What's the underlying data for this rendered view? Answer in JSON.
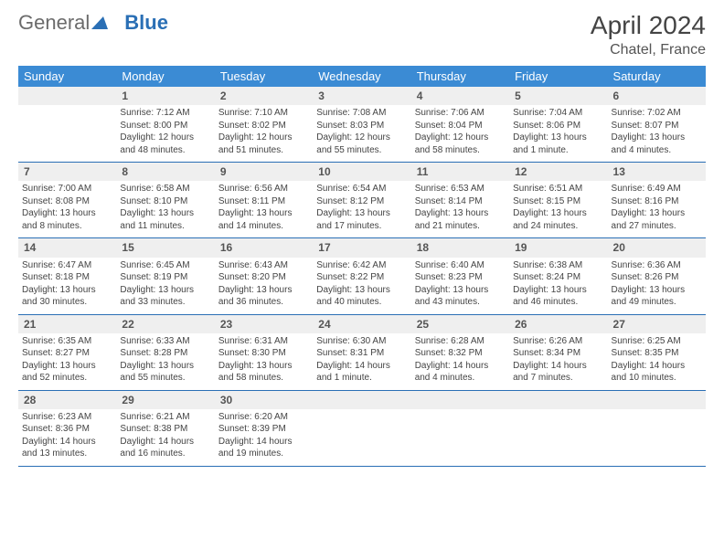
{
  "brand": {
    "part1": "General",
    "part2": "Blue"
  },
  "title": "April 2024",
  "location": "Chatel, France",
  "colors": {
    "header_bg": "#3b8bd4",
    "header_text": "#ffffff",
    "rule": "#2a6fb5",
    "daynum_bg": "#efefef",
    "text": "#444444"
  },
  "weekdays": [
    "Sunday",
    "Monday",
    "Tuesday",
    "Wednesday",
    "Thursday",
    "Friday",
    "Saturday"
  ],
  "weeks": [
    {
      "nums": [
        "",
        "1",
        "2",
        "3",
        "4",
        "5",
        "6"
      ],
      "cells": [
        {
          "empty": true
        },
        {
          "sunrise": "Sunrise: 7:12 AM",
          "sunset": "Sunset: 8:00 PM",
          "day1": "Daylight: 12 hours",
          "day2": "and 48 minutes."
        },
        {
          "sunrise": "Sunrise: 7:10 AM",
          "sunset": "Sunset: 8:02 PM",
          "day1": "Daylight: 12 hours",
          "day2": "and 51 minutes."
        },
        {
          "sunrise": "Sunrise: 7:08 AM",
          "sunset": "Sunset: 8:03 PM",
          "day1": "Daylight: 12 hours",
          "day2": "and 55 minutes."
        },
        {
          "sunrise": "Sunrise: 7:06 AM",
          "sunset": "Sunset: 8:04 PM",
          "day1": "Daylight: 12 hours",
          "day2": "and 58 minutes."
        },
        {
          "sunrise": "Sunrise: 7:04 AM",
          "sunset": "Sunset: 8:06 PM",
          "day1": "Daylight: 13 hours",
          "day2": "and 1 minute."
        },
        {
          "sunrise": "Sunrise: 7:02 AM",
          "sunset": "Sunset: 8:07 PM",
          "day1": "Daylight: 13 hours",
          "day2": "and 4 minutes."
        }
      ]
    },
    {
      "nums": [
        "7",
        "8",
        "9",
        "10",
        "11",
        "12",
        "13"
      ],
      "cells": [
        {
          "sunrise": "Sunrise: 7:00 AM",
          "sunset": "Sunset: 8:08 PM",
          "day1": "Daylight: 13 hours",
          "day2": "and 8 minutes."
        },
        {
          "sunrise": "Sunrise: 6:58 AM",
          "sunset": "Sunset: 8:10 PM",
          "day1": "Daylight: 13 hours",
          "day2": "and 11 minutes."
        },
        {
          "sunrise": "Sunrise: 6:56 AM",
          "sunset": "Sunset: 8:11 PM",
          "day1": "Daylight: 13 hours",
          "day2": "and 14 minutes."
        },
        {
          "sunrise": "Sunrise: 6:54 AM",
          "sunset": "Sunset: 8:12 PM",
          "day1": "Daylight: 13 hours",
          "day2": "and 17 minutes."
        },
        {
          "sunrise": "Sunrise: 6:53 AM",
          "sunset": "Sunset: 8:14 PM",
          "day1": "Daylight: 13 hours",
          "day2": "and 21 minutes."
        },
        {
          "sunrise": "Sunrise: 6:51 AM",
          "sunset": "Sunset: 8:15 PM",
          "day1": "Daylight: 13 hours",
          "day2": "and 24 minutes."
        },
        {
          "sunrise": "Sunrise: 6:49 AM",
          "sunset": "Sunset: 8:16 PM",
          "day1": "Daylight: 13 hours",
          "day2": "and 27 minutes."
        }
      ]
    },
    {
      "nums": [
        "14",
        "15",
        "16",
        "17",
        "18",
        "19",
        "20"
      ],
      "cells": [
        {
          "sunrise": "Sunrise: 6:47 AM",
          "sunset": "Sunset: 8:18 PM",
          "day1": "Daylight: 13 hours",
          "day2": "and 30 minutes."
        },
        {
          "sunrise": "Sunrise: 6:45 AM",
          "sunset": "Sunset: 8:19 PM",
          "day1": "Daylight: 13 hours",
          "day2": "and 33 minutes."
        },
        {
          "sunrise": "Sunrise: 6:43 AM",
          "sunset": "Sunset: 8:20 PM",
          "day1": "Daylight: 13 hours",
          "day2": "and 36 minutes."
        },
        {
          "sunrise": "Sunrise: 6:42 AM",
          "sunset": "Sunset: 8:22 PM",
          "day1": "Daylight: 13 hours",
          "day2": "and 40 minutes."
        },
        {
          "sunrise": "Sunrise: 6:40 AM",
          "sunset": "Sunset: 8:23 PM",
          "day1": "Daylight: 13 hours",
          "day2": "and 43 minutes."
        },
        {
          "sunrise": "Sunrise: 6:38 AM",
          "sunset": "Sunset: 8:24 PM",
          "day1": "Daylight: 13 hours",
          "day2": "and 46 minutes."
        },
        {
          "sunrise": "Sunrise: 6:36 AM",
          "sunset": "Sunset: 8:26 PM",
          "day1": "Daylight: 13 hours",
          "day2": "and 49 minutes."
        }
      ]
    },
    {
      "nums": [
        "21",
        "22",
        "23",
        "24",
        "25",
        "26",
        "27"
      ],
      "cells": [
        {
          "sunrise": "Sunrise: 6:35 AM",
          "sunset": "Sunset: 8:27 PM",
          "day1": "Daylight: 13 hours",
          "day2": "and 52 minutes."
        },
        {
          "sunrise": "Sunrise: 6:33 AM",
          "sunset": "Sunset: 8:28 PM",
          "day1": "Daylight: 13 hours",
          "day2": "and 55 minutes."
        },
        {
          "sunrise": "Sunrise: 6:31 AM",
          "sunset": "Sunset: 8:30 PM",
          "day1": "Daylight: 13 hours",
          "day2": "and 58 minutes."
        },
        {
          "sunrise": "Sunrise: 6:30 AM",
          "sunset": "Sunset: 8:31 PM",
          "day1": "Daylight: 14 hours",
          "day2": "and 1 minute."
        },
        {
          "sunrise": "Sunrise: 6:28 AM",
          "sunset": "Sunset: 8:32 PM",
          "day1": "Daylight: 14 hours",
          "day2": "and 4 minutes."
        },
        {
          "sunrise": "Sunrise: 6:26 AM",
          "sunset": "Sunset: 8:34 PM",
          "day1": "Daylight: 14 hours",
          "day2": "and 7 minutes."
        },
        {
          "sunrise": "Sunrise: 6:25 AM",
          "sunset": "Sunset: 8:35 PM",
          "day1": "Daylight: 14 hours",
          "day2": "and 10 minutes."
        }
      ]
    },
    {
      "nums": [
        "28",
        "29",
        "30",
        "",
        "",
        "",
        ""
      ],
      "cells": [
        {
          "sunrise": "Sunrise: 6:23 AM",
          "sunset": "Sunset: 8:36 PM",
          "day1": "Daylight: 14 hours",
          "day2": "and 13 minutes."
        },
        {
          "sunrise": "Sunrise: 6:21 AM",
          "sunset": "Sunset: 8:38 PM",
          "day1": "Daylight: 14 hours",
          "day2": "and 16 minutes."
        },
        {
          "sunrise": "Sunrise: 6:20 AM",
          "sunset": "Sunset: 8:39 PM",
          "day1": "Daylight: 14 hours",
          "day2": "and 19 minutes."
        },
        {
          "empty": true
        },
        {
          "empty": true
        },
        {
          "empty": true
        },
        {
          "empty": true
        }
      ]
    }
  ]
}
